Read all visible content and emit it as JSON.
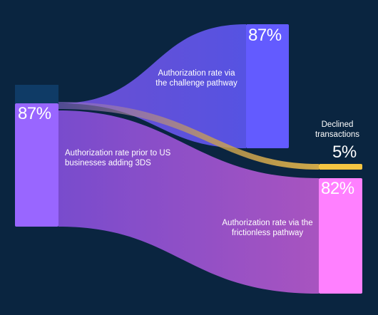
{
  "nodes": {
    "source": {
      "value": "87%",
      "label": "Authorization rate prior to US businesses adding 3DS"
    },
    "challenge": {
      "value": "87%",
      "label": "Authorization rate via the challenge pathway"
    },
    "declined": {
      "value": "5%",
      "label": "Declined transactions"
    },
    "frictionless": {
      "value": "82%",
      "label": "Authorization rate via the frictionless pathway"
    }
  },
  "colors": {
    "background": "#0a2540",
    "source": "#9966ff",
    "source_header": "#0f3b66",
    "challenge": "#635bff",
    "declined": "#f5c542",
    "frictionless": "#ff80ff"
  }
}
